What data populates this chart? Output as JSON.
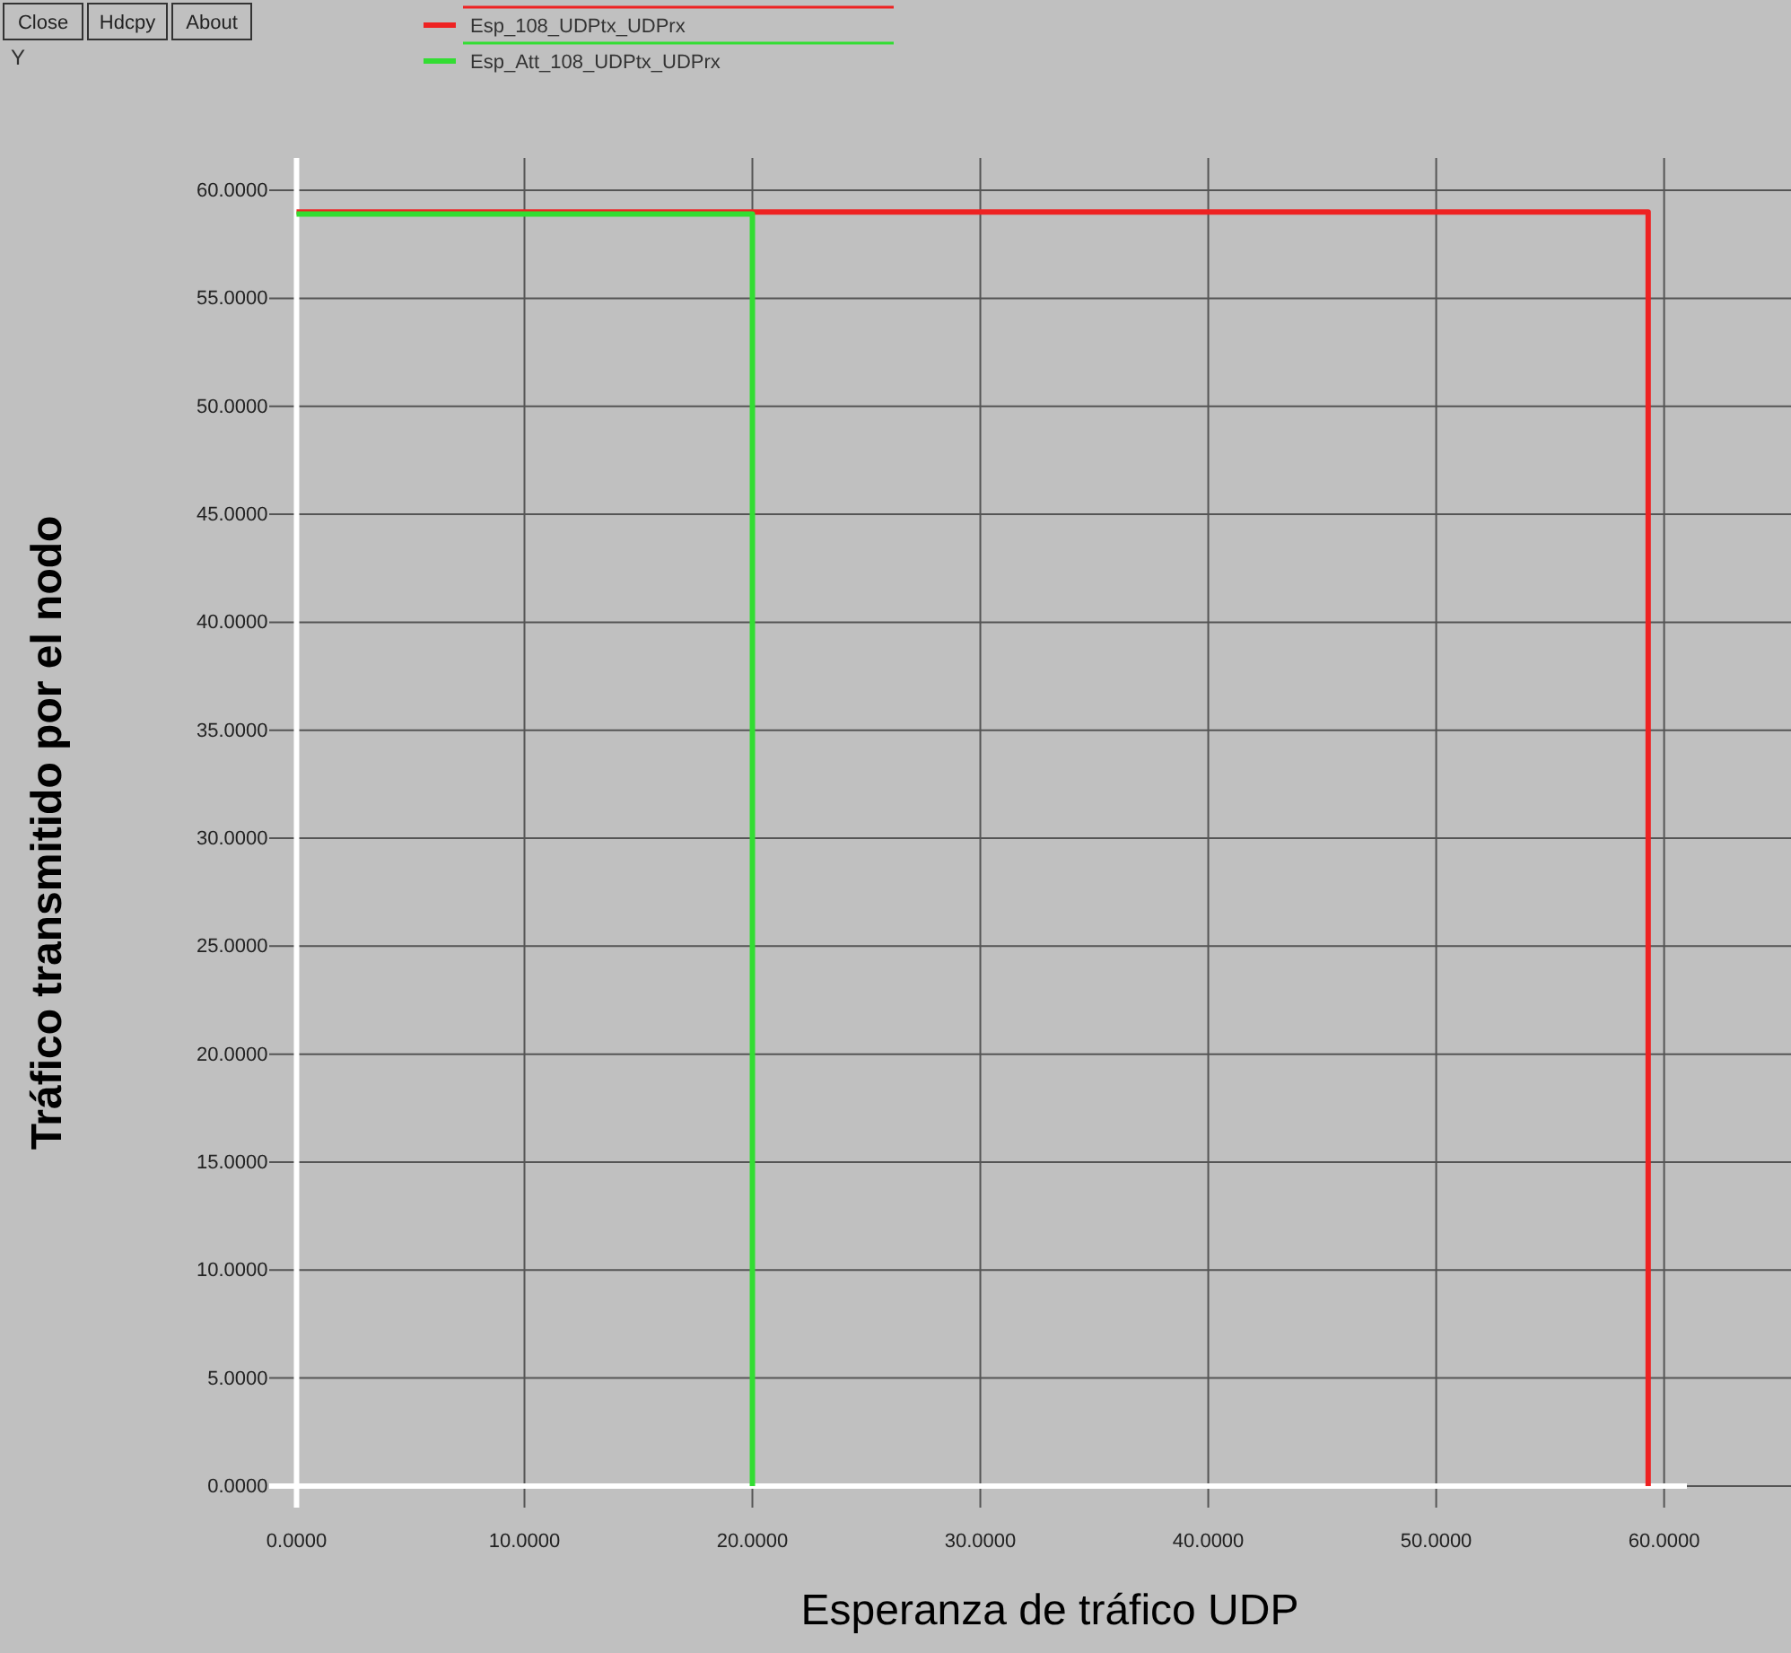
{
  "chart_data": {
    "type": "line",
    "xlabel": "Esperanza de tráfico UDP",
    "ylabel": "Tráfico transmitido por el nodo",
    "annotations": [
      "Close",
      "Hdcpy",
      "About",
      "Y"
    ],
    "xlim": [
      -1.2,
      61
    ],
    "ylim": [
      -1,
      61.5
    ],
    "xticks": [
      {
        "value": 0,
        "label": "0.0000"
      },
      {
        "value": 10,
        "label": "10.0000"
      },
      {
        "value": 20,
        "label": "20.0000"
      },
      {
        "value": 30,
        "label": "30.0000"
      },
      {
        "value": 40,
        "label": "40.0000"
      },
      {
        "value": 50,
        "label": "50.0000"
      },
      {
        "value": 60,
        "label": "60.0000"
      }
    ],
    "yticks": [
      {
        "value": 0,
        "label": "0.0000"
      },
      {
        "value": 5,
        "label": "5.0000"
      },
      {
        "value": 10,
        "label": "10.0000"
      },
      {
        "value": 15,
        "label": "15.0000"
      },
      {
        "value": 20,
        "label": "20.0000"
      },
      {
        "value": 25,
        "label": "25.0000"
      },
      {
        "value": 30,
        "label": "30.0000"
      },
      {
        "value": 35,
        "label": "35.0000"
      },
      {
        "value": 40,
        "label": "40.0000"
      },
      {
        "value": 45,
        "label": "45.0000"
      },
      {
        "value": 50,
        "label": "50.0000"
      },
      {
        "value": 55,
        "label": "55.0000"
      },
      {
        "value": 60,
        "label": "60.0000"
      }
    ],
    "grid": true,
    "legend": "top",
    "line_style": "solid",
    "marker": "none",
    "series": [
      {
        "name": "Esp_108_UDPtx_UDPrx",
        "color": "#ee2222",
        "x": [
          0,
          59.3,
          59.3
        ],
        "values": [
          59.0,
          59.0,
          0
        ]
      },
      {
        "name": "Esp_Att_108_UDPtx_UDPrx",
        "color": "#33dd33",
        "x": [
          0,
          20,
          20
        ],
        "values": [
          58.9,
          58.9,
          0
        ]
      }
    ]
  }
}
